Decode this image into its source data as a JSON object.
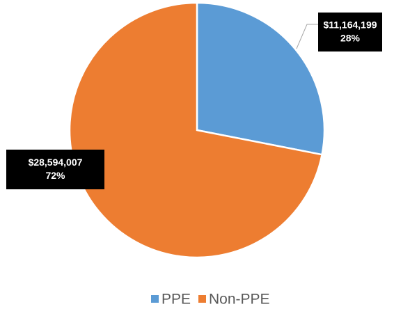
{
  "chart_data": {
    "type": "pie",
    "categories": [
      "PPE",
      "Non-PPE"
    ],
    "values": [
      11164199,
      28594007
    ],
    "value_labels": [
      "$11,164,199",
      "$28,594,007"
    ],
    "percents": [
      28,
      72
    ],
    "percent_labels": [
      "28%",
      "72%"
    ],
    "colors": [
      "#5b9bd5",
      "#ed7d31"
    ],
    "legend": "bottom"
  }
}
